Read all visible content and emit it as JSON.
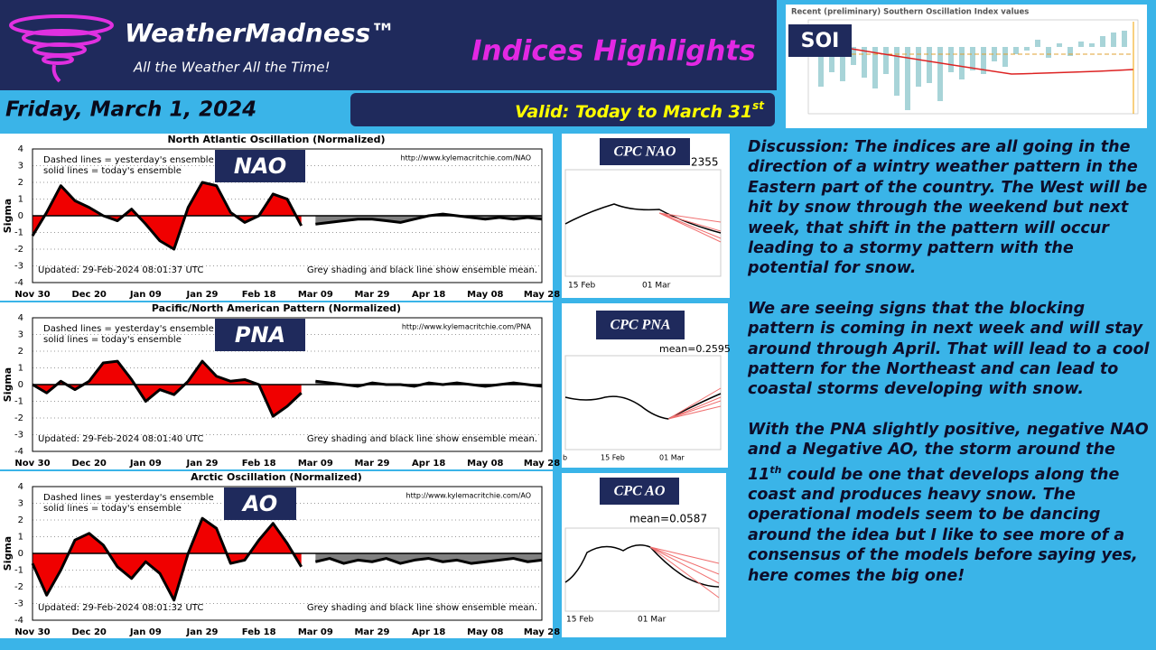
{
  "header": {
    "brand": "WeatherMadness™",
    "tagline": "All the Weather All the Time!",
    "title": "Indices Highlights",
    "date": "Friday, March 1, 2024",
    "valid": "Valid: Today to March 31",
    "valid_sup": "st"
  },
  "soi": {
    "label": "SOI",
    "title": "Recent (preliminary) Southern Oscillation Index values"
  },
  "indices": [
    {
      "label": "NAO",
      "title": "North Atlantic Oscillation (Normalized)",
      "legend": [
        "Dashed lines = yesterday's ensemble",
        "solid lines = today's ensemble"
      ],
      "url": "http://www.kylemacritchie.com/NAO",
      "updated": "Updated: 29-Feb-2024 08:01:37 UTC",
      "note": "Grey shading and black line show ensemble mean.",
      "y_label": "Sigma",
      "ylim": [
        -4,
        4
      ],
      "yticks": [
        -4,
        -3,
        -2,
        -1,
        0,
        1,
        2,
        3,
        4
      ],
      "x_labels": [
        "Nov 30",
        "Dec 20",
        "Jan 09",
        "Jan 29",
        "Feb 18",
        "Mar 09",
        "Mar 29",
        "Apr 18",
        "May 08",
        "May 28"
      ],
      "observed": [
        -1.2,
        0.2,
        1.8,
        0.9,
        0.5,
        0.0,
        -0.3,
        0.4,
        -0.5,
        -1.5,
        -2.0,
        0.5,
        2.0,
        1.8,
        0.2,
        -0.4,
        0.0,
        1.3,
        1.0,
        -0.6
      ],
      "forecast_mean": [
        -0.5,
        -0.4,
        -0.3,
        -0.2,
        -0.2,
        -0.3,
        -0.4,
        -0.2,
        0.0,
        0.1,
        0.0,
        -0.1,
        -0.2,
        -0.1,
        -0.2,
        -0.1,
        -0.2
      ]
    },
    {
      "label": "PNA",
      "title": "Pacific/North American Pattern (Normalized)",
      "legend": [
        "Dashed lines = yesterday's ensemble",
        "solid lines = today's ensemble"
      ],
      "url": "http://www.kylemacritchie.com/PNA",
      "updated": "Updated: 29-Feb-2024 08:01:40 UTC",
      "note": "Grey shading and black line show ensemble mean.",
      "y_label": "Sigma",
      "ylim": [
        -4,
        4
      ],
      "yticks": [
        -4,
        -3,
        -2,
        -1,
        0,
        1,
        2,
        3,
        4
      ],
      "x_labels": [
        "Nov 30",
        "Dec 20",
        "Jan 09",
        "Jan 29",
        "Feb 18",
        "Mar 09",
        "Mar 29",
        "Apr 18",
        "May 08",
        "May 28"
      ],
      "observed": [
        0.0,
        -0.5,
        0.2,
        -0.3,
        0.2,
        1.3,
        1.4,
        0.3,
        -1.0,
        -0.3,
        -0.6,
        0.2,
        1.4,
        0.5,
        0.2,
        0.3,
        0.0,
        -1.9,
        -1.3,
        -0.5
      ],
      "forecast_mean": [
        0.2,
        0.1,
        0.0,
        -0.1,
        0.1,
        0.0,
        0.0,
        -0.1,
        0.1,
        0.0,
        0.1,
        0.0,
        -0.1,
        0.0,
        0.1,
        0.0,
        -0.1
      ]
    },
    {
      "label": "AO",
      "title": "Arctic Oscillation (Normalized)",
      "legend": [
        "Dashed lines = yesterday's ensemble",
        "solid lines = today's ensemble"
      ],
      "url": "http://www.kylemacritchie.com/AO",
      "updated": "Updated: 29-Feb-2024 08:01:32 UTC",
      "note": "Grey shading and black line show ensemble mean.",
      "y_label": "Sigma",
      "ylim": [
        -4,
        4
      ],
      "yticks": [
        -4,
        -3,
        -2,
        -1,
        0,
        1,
        2,
        3,
        4
      ],
      "x_labels": [
        "Nov 30",
        "Dec 20",
        "Jan 09",
        "Jan 29",
        "Feb 18",
        "Mar 09",
        "Mar 29",
        "Apr 18",
        "May 08",
        "May 28"
      ],
      "observed": [
        -0.6,
        -2.5,
        -1.0,
        0.8,
        1.2,
        0.5,
        -0.8,
        -1.5,
        -0.5,
        -1.2,
        -2.8,
        0.0,
        2.1,
        1.5,
        -0.6,
        -0.4,
        0.8,
        1.8,
        0.6,
        -0.8
      ],
      "forecast_mean": [
        -0.5,
        -0.3,
        -0.6,
        -0.4,
        -0.5,
        -0.3,
        -0.6,
        -0.4,
        -0.3,
        -0.5,
        -0.4,
        -0.6,
        -0.5,
        -0.4,
        -0.3,
        -0.5,
        -0.4
      ]
    }
  ],
  "cpc": [
    {
      "label": "CPC NAO",
      "mean": "2355",
      "x_labels": [
        "15 Feb",
        "01 Mar"
      ]
    },
    {
      "label": "CPC PNA",
      "mean": "mean=0.2595",
      "x_labels": [
        "b",
        "15 Feb",
        "01 Mar"
      ]
    },
    {
      "label": "CPC AO",
      "mean": "mean=0.0587",
      "x_labels": [
        "15 Feb",
        "01 Mar"
      ]
    }
  ],
  "discussion": {
    "p1": "Discussion: The indices are all going in the direction of a  wintry weather pattern in the Eastern part of the country. The West will be hit by snow through the weekend but next week, that shift in the pattern will occur leading to a stormy pattern with the potential for snow.",
    "p2": "We are seeing signs that the blocking pattern is coming in next week and will stay around through April. That will lead to a cool pattern for the Northeast and can lead to coastal storms developing with snow.",
    "p3a": "With the PNA slightly positive, negative NAO and a Negative AO, the storm around the 11",
    "p3sup": "th",
    "p3b": " could be one that develops along the coast and produces heavy snow. The operational models seem to be dancing around the idea but I like to see more of a consensus of the models before saying yes, here comes the big one!"
  }
}
